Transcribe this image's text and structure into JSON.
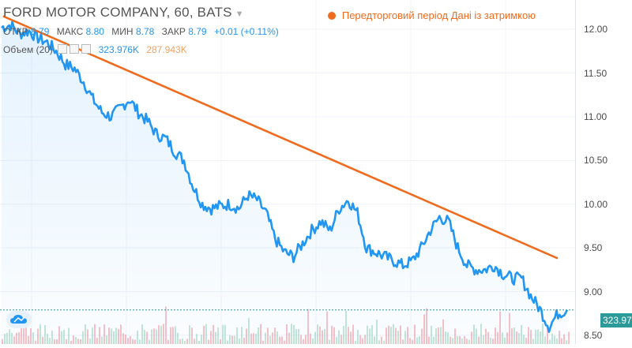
{
  "header": {
    "title": "FORD MOTOR COMPANY, 60, BATS",
    "dropdown_icon": "caret-down-icon"
  },
  "ohlc": {
    "open_label": "ОТКР",
    "open_value": "8.79",
    "high_label": "МАКС",
    "high_value": "8.80",
    "low_label": "МИН",
    "low_value": "8.78",
    "close_label": "ЗАКР",
    "close_value": "8.79",
    "change_value": "+0.01 (+0.11%)"
  },
  "volume": {
    "label": "Объем (20)",
    "value": "323.976K",
    "ma_value": "287.943K"
  },
  "premarket_legend": "Передторговий період Дані із затримкою",
  "price_label": "323.976K",
  "colors": {
    "price_line": "#2196f3",
    "trend_line": "#ef6c1e",
    "volume_up": "#53b987",
    "volume_down": "#eb4d5c",
    "last_price_line": "#2d9a9a"
  },
  "chart_data": {
    "type": "line",
    "ylim": [
      8.4,
      12.2
    ],
    "y_ticks": [
      "12.00",
      "11.50",
      "11.00",
      "10.50",
      "10.00",
      "9.50",
      "9.00",
      "8.50"
    ],
    "y_tick_values": [
      12.0,
      11.5,
      11.0,
      10.5,
      10.0,
      9.5,
      9.0,
      8.5
    ],
    "series": [
      {
        "values": [
          12.02,
          12.05,
          11.95,
          11.98,
          11.9,
          11.85,
          11.75,
          11.6,
          11.55,
          11.4,
          11.2,
          11.05,
          11.0,
          11.1,
          11.2,
          11.05,
          10.95,
          10.8,
          10.75,
          10.6,
          10.5,
          10.2,
          10.0,
          9.95,
          9.98,
          10.0,
          9.95,
          10.1,
          10.05,
          9.9,
          9.6,
          9.45,
          9.4,
          9.55,
          9.7,
          9.8,
          9.7,
          9.95,
          10.05,
          9.9,
          9.5,
          9.45,
          9.4,
          9.35,
          9.3,
          9.35,
          9.5,
          9.7,
          9.85,
          9.8,
          9.5,
          9.3,
          9.25,
          9.25,
          9.3,
          9.2,
          9.15,
          9.15,
          8.95,
          8.8,
          8.6,
          8.75,
          8.79
        ]
      }
    ],
    "trendline": {
      "start": 12.15,
      "end": 9.38
    }
  }
}
